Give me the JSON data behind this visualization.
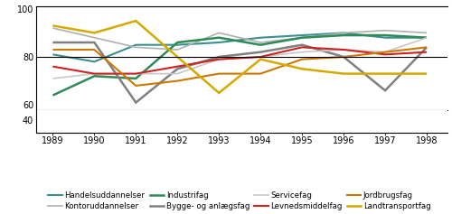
{
  "years": [
    1989,
    1990,
    1991,
    1992,
    1993,
    1994,
    1995,
    1996,
    1997,
    1998
  ],
  "series": {
    "Handelsuddannelser": {
      "values": [
        81,
        78,
        85,
        85,
        86,
        88,
        89,
        90,
        88,
        88
      ],
      "color": "#3b8f8f",
      "linewidth": 1.5
    },
    "Kontoruddannelser": {
      "values": [
        92,
        88,
        84,
        83,
        90,
        86,
        88,
        90,
        91,
        90
      ],
      "color": "#b0b0b0",
      "linewidth": 1.2
    },
    "Industrifag": {
      "values": [
        64,
        72,
        71,
        86,
        88,
        85,
        88,
        89,
        89,
        88
      ],
      "color": "#2e8b57",
      "linewidth": 1.8
    },
    "Bygge- og anlægsfag": {
      "values": [
        86,
        86,
        61,
        75,
        80,
        82,
        85,
        80,
        66,
        84
      ],
      "color": "#808080",
      "linewidth": 1.8
    },
    "Servicefag": {
      "values": [
        71,
        73,
        73,
        73,
        79,
        80,
        82,
        83,
        82,
        88
      ],
      "color": "#c8c8c8",
      "linewidth": 1.2
    },
    "Levnedsmiddelfag": {
      "values": [
        76,
        73,
        73,
        76,
        79,
        80,
        84,
        83,
        81,
        82
      ],
      "color": "#cc2222",
      "linewidth": 1.5
    },
    "Jordbrugsfag": {
      "values": [
        83,
        83,
        68,
        70,
        73,
        73,
        79,
        80,
        82,
        84
      ],
      "color": "#cc7700",
      "linewidth": 1.5
    },
    "Landtransportfag": {
      "values": [
        93,
        90,
        95,
        80,
        65,
        79,
        75,
        73,
        73,
        73
      ],
      "color": "#d4aa00",
      "linewidth": 1.8
    }
  },
  "ylim_main": [
    58,
    101
  ],
  "ylim_dummy": [
    37.5,
    42
  ],
  "yticks_main": [
    60,
    80,
    100
  ],
  "ytick_dummy": 40,
  "hline": 80,
  "background_color": "#ffffff",
  "legend_order": [
    "Handelsuddannelser",
    "Kontoruddannelser",
    "Industrifag",
    "Bygge- og anlægsfag",
    "Servicefag",
    "Levnedsmiddelfag",
    "Jordbrugsfag",
    "Landtransportfag"
  ]
}
